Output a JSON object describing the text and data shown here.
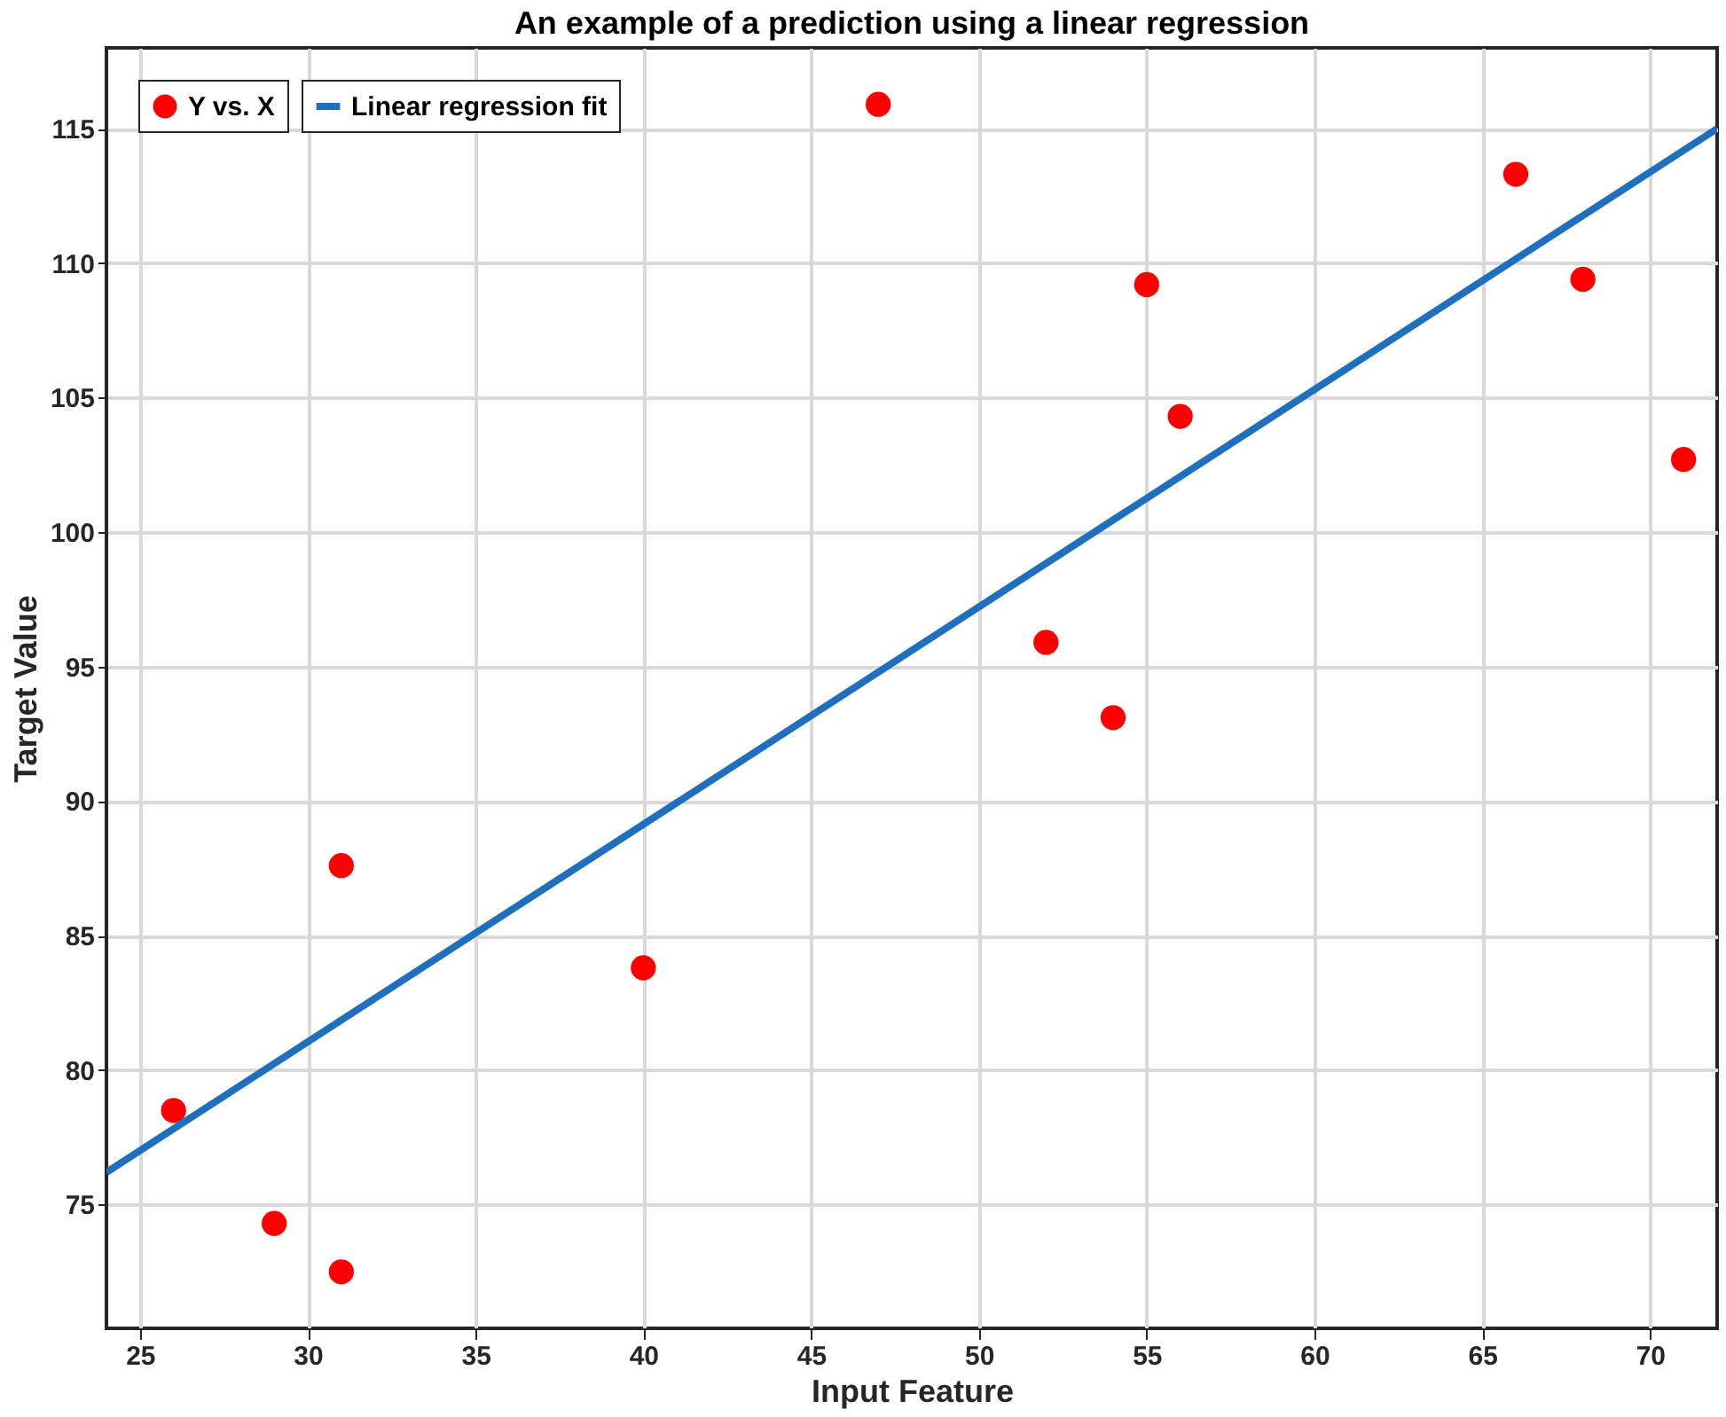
{
  "chart_data": {
    "type": "scatter",
    "title": "An example of a prediction using a linear regression",
    "xlabel": "Input Feature",
    "ylabel": "Target Value",
    "xlim": [
      24,
      72
    ],
    "ylim": [
      70.4,
      118
    ],
    "xticks": [
      25,
      30,
      35,
      40,
      45,
      50,
      55,
      60,
      65,
      70
    ],
    "yticks": [
      75,
      80,
      85,
      90,
      95,
      100,
      105,
      110,
      115
    ],
    "grid": true,
    "legend": "top left",
    "series": [
      {
        "name": "Y vs. X",
        "marker": "circle",
        "color": "#ff0000",
        "x": [
          26,
          29,
          31,
          31,
          40,
          47,
          52,
          54,
          55,
          56,
          66,
          68,
          71
        ],
        "values": [
          78.5,
          74.3,
          72.5,
          87.6,
          83.8,
          115.9,
          95.9,
          93.1,
          109.2,
          104.3,
          113.3,
          109.4,
          102.7
        ]
      },
      {
        "name": "Linear regression fit",
        "type": "line",
        "marker": "none",
        "color": "#1f6fbf",
        "x": [
          24,
          72
        ],
        "values": [
          76.2,
          115.0
        ]
      }
    ]
  }
}
